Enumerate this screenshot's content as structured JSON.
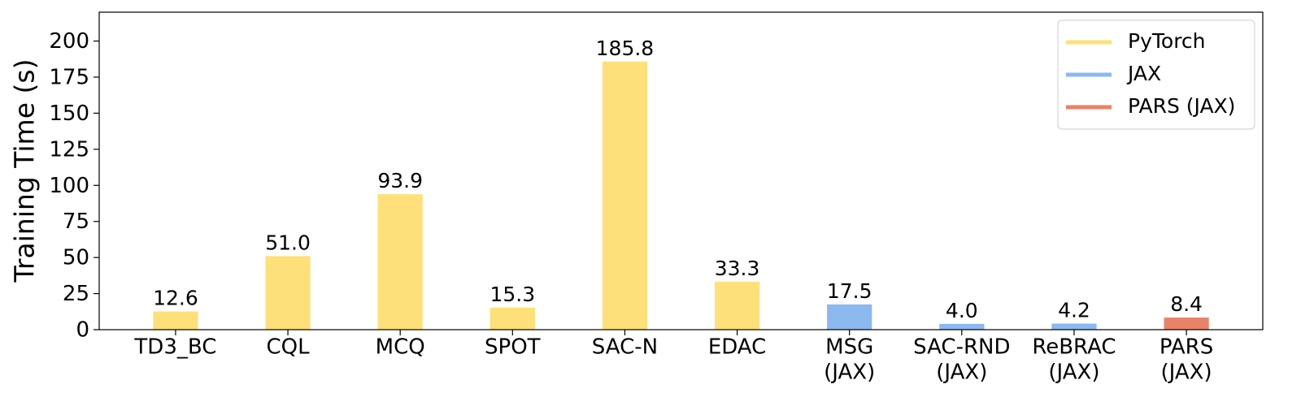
{
  "chart_data": {
    "type": "bar",
    "y_label": "Training Time (s)",
    "categories": [
      "TD3_BC",
      "CQL",
      "MCQ",
      "SPOT",
      "SAC-N",
      "EDAC",
      [
        "MSG",
        "(JAX)"
      ],
      [
        "SAC-RND",
        "(JAX)"
      ],
      [
        "ReBRAC",
        "(JAX)"
      ],
      [
        "PARS",
        "(JAX)"
      ]
    ],
    "series": [
      {
        "name": "PyTorch",
        "color": "#fde07a",
        "values": [
          12.6,
          51.0,
          93.9,
          15.3,
          185.8,
          33.3,
          null,
          null,
          null,
          null
        ],
        "value_labels": [
          "12.6",
          "51.0",
          "93.9",
          "15.3",
          "185.8",
          "33.3",
          null,
          null,
          null,
          null
        ]
      },
      {
        "name": "JAX",
        "color": "#8cb8f0",
        "values": [
          null,
          null,
          null,
          null,
          null,
          null,
          17.5,
          4.0,
          4.2,
          null
        ],
        "value_labels": [
          null,
          null,
          null,
          null,
          null,
          null,
          "17.5",
          "4.0",
          "4.2",
          null
        ]
      },
      {
        "name": "PARS (JAX)",
        "color": "#e8836a",
        "values": [
          null,
          null,
          null,
          null,
          null,
          null,
          null,
          null,
          null,
          8.4
        ],
        "value_labels": [
          null,
          null,
          null,
          null,
          null,
          null,
          null,
          null,
          null,
          "8.4"
        ]
      }
    ],
    "ylim": [
      0,
      220
    ],
    "yticks": [
      0,
      25,
      50,
      75,
      100,
      125,
      150,
      175,
      200
    ],
    "grid": false,
    "legend": "upper right"
  }
}
